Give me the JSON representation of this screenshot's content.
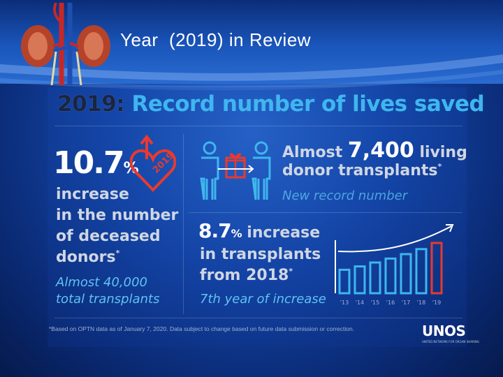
{
  "slide": {
    "title": "Year  (2019) in Review"
  },
  "infographic": {
    "headline_year": "2019:",
    "headline_text": "Record number of lives saved",
    "deceased": {
      "number": "10.7",
      "percent_sign": "%",
      "heart_year": "2019",
      "line1": "increase",
      "line2": "in the number",
      "line3": "of deceased",
      "line4": "donors",
      "asterisk": "*",
      "note1": "Almost 40,000",
      "note2": "total transplants"
    },
    "living": {
      "line1_prefix": "Almost ",
      "number": "7,400",
      "line1_suffix": " living",
      "line2": "donor transplants",
      "asterisk": "*",
      "note": "New record number"
    },
    "increase": {
      "number": "8.7",
      "percent_sign": "%",
      "line1_suffix": " increase",
      "line2": "in transplants",
      "line3": "from 2018",
      "asterisk": "*",
      "note": "7th year of increase",
      "bar_labels": [
        "'13",
        "'14",
        "'15",
        "'16",
        "'17",
        "'18",
        "'19"
      ],
      "bar_levels": [
        0.42,
        0.48,
        0.55,
        0.62,
        0.7,
        0.79,
        0.9
      ]
    },
    "footnote": "*Based on OPTN data as of January 7, 2020. Data subject to change based on future data submission or correction.",
    "logo": "UNOS",
    "logo_tagline": "UNITED NETWORK FOR ORGAN SHARING"
  },
  "colors": {
    "accent_blue": "#3fb6ef",
    "accent_red": "#e83a2e",
    "text_gray": "#cfd6e3"
  },
  "icons": {
    "heart": "heart-arrow-icon",
    "people": "gift-exchange-icon",
    "kidney": "kidney-illustration-icon"
  }
}
